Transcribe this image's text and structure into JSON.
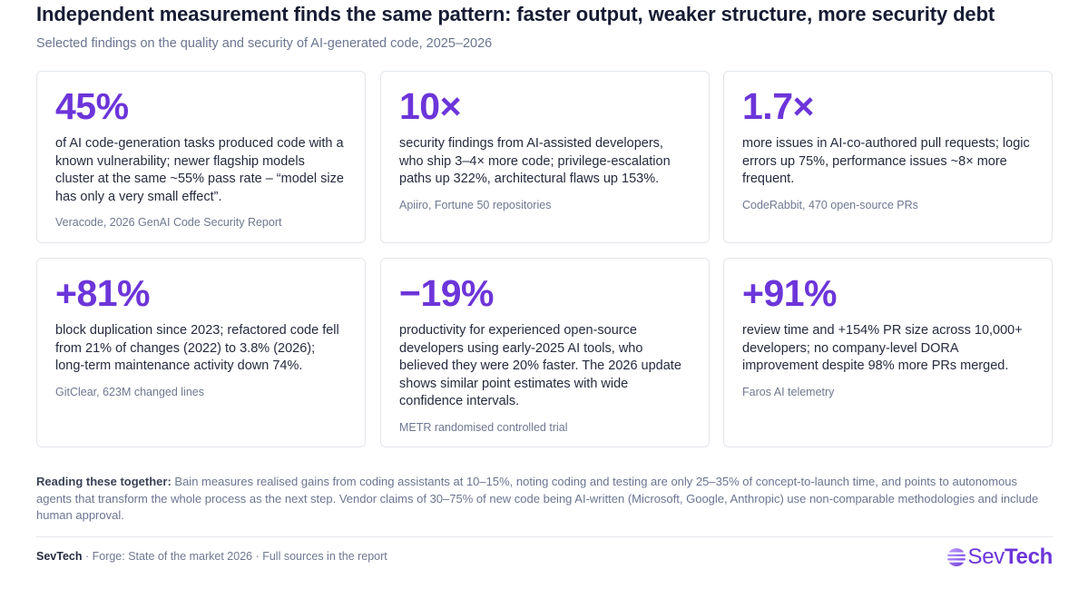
{
  "header": {
    "title": "Independent measurement finds the same pattern: faster output, weaker structure, more security debt",
    "subtitle": "Selected findings on the quality and security of AI-generated code, 2025–2026"
  },
  "cards": [
    {
      "stat": "45%",
      "description": "of AI code-generation tasks produced code with a known vulnerability; newer flagship models cluster at the same ~55% pass rate – “model size has only a very small effect”.",
      "source": "Veracode, 2026 GenAI Code Security Report"
    },
    {
      "stat": "10×",
      "description": "security findings from AI-assisted developers, who ship 3–4× more code; privilege-escalation paths up 322%, architectural flaws up 153%.",
      "source": "Apiiro, Fortune 50 repositories"
    },
    {
      "stat": "1.7×",
      "description": "more issues in AI-co-authored pull requests; logic errors up 75%, performance issues ~8× more frequent.",
      "source": "CodeRabbit, 470 open-source PRs"
    },
    {
      "stat": "+81%",
      "description": "block duplication since 2023; refactored code fell from 21% of changes (2022) to 3.8% (2026); long-term maintenance activity down 74%.",
      "source": "GitClear, 623M changed lines"
    },
    {
      "stat": "−19%",
      "description": "productivity for experienced open-source developers using early-2025 AI tools, who believed they were 20% faster. The 2026 update shows similar point estimates with wide confidence intervals.",
      "source": "METR randomised controlled trial"
    },
    {
      "stat": "+91%",
      "description": "review time and +154% PR size across 10,000+ developers; no company-level DORA improvement despite 98% more PRs merged.",
      "source": "Faros AI telemetry"
    }
  ],
  "note": {
    "lead": "Reading these together:",
    "text": " Bain measures realised gains from coding assistants at 10–15%, noting coding and testing are only 25–35% of concept-to-launch time, and points to autonomous agents that transform the whole process as the next step. Vendor claims of 30–75% of new code being AI-written (Microsoft, Google, Anthropic) use non-comparable methodologies and include human approval."
  },
  "footer": {
    "brand": "SevTech",
    "text": " · Forge: State of the market 2026 · Full sources in the report"
  },
  "logo": {
    "part1": "Sev",
    "part2": "Tech",
    "icon": "sevtech-logo-icon"
  },
  "colors": {
    "accent": "#6c35d9",
    "title": "#171c33",
    "muted": "#6b7691",
    "card_border": "#e3e6ec"
  }
}
